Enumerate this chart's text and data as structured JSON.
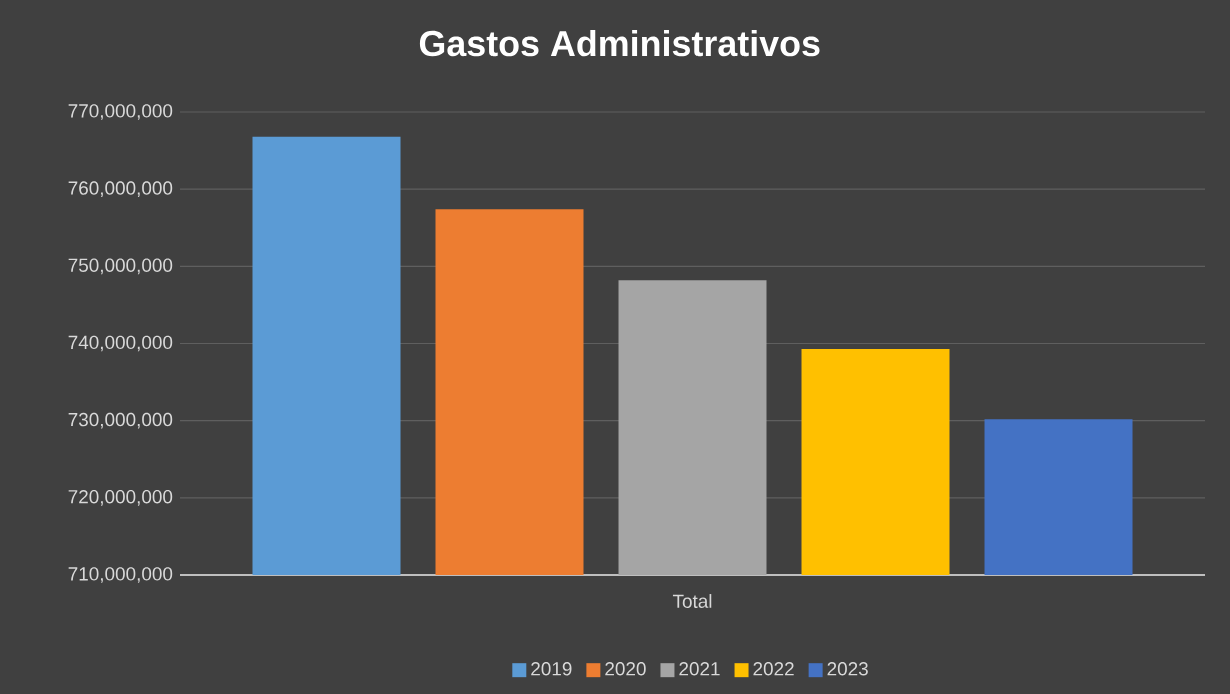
{
  "chart_data": {
    "type": "bar",
    "title": "Gastos Administrativos",
    "categories": [
      "Total"
    ],
    "series": [
      {
        "name": "2019",
        "color": "#5b9bd5",
        "values": [
          766800000
        ]
      },
      {
        "name": "2020",
        "color": "#ed7d31",
        "values": [
          757400000
        ]
      },
      {
        "name": "2021",
        "color": "#a5a5a5",
        "values": [
          748200000
        ]
      },
      {
        "name": "2022",
        "color": "#ffc000",
        "values": [
          739300000
        ]
      },
      {
        "name": "2023",
        "color": "#4472c4",
        "values": [
          730200000
        ]
      }
    ],
    "ylim": [
      710000000,
      770000000
    ],
    "yticks": [
      {
        "value": 710000000,
        "label": "710,000,000"
      },
      {
        "value": 720000000,
        "label": "720,000,000"
      },
      {
        "value": 730000000,
        "label": "730,000,000"
      },
      {
        "value": 740000000,
        "label": "740,000,000"
      },
      {
        "value": 750000000,
        "label": "750,000,000"
      },
      {
        "value": 760000000,
        "label": "760,000,000"
      },
      {
        "value": 770000000,
        "label": "770,000,000"
      }
    ],
    "grid": "y",
    "legend": "bottom"
  }
}
